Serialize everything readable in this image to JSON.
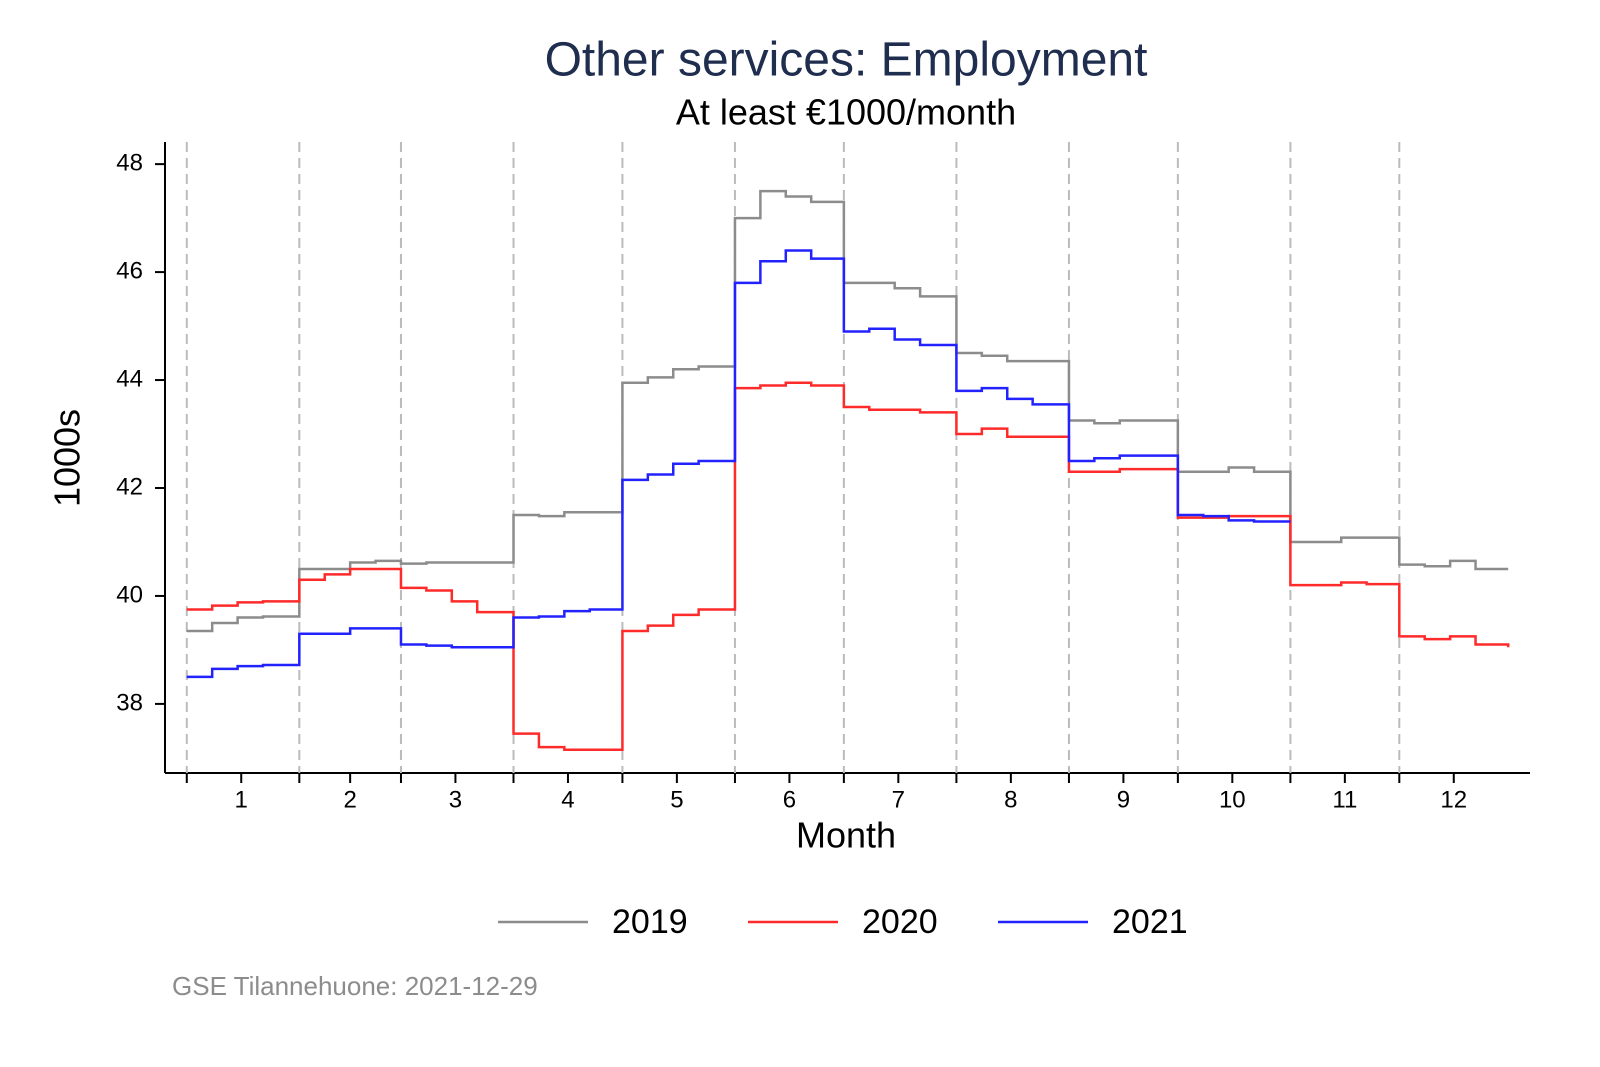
{
  "chart_data": {
    "type": "step",
    "title": "Other services: Employment",
    "subtitle": "At least €1000/month",
    "x_label": "Month",
    "y_label": "1000s",
    "source": "GSE Tilannehuone: 2021-12-29",
    "x": [
      1,
      8,
      15,
      22,
      32,
      39,
      46,
      53,
      60,
      67,
      74,
      81,
      91,
      98,
      105,
      112,
      121,
      128,
      135,
      142,
      152,
      159,
      166,
      173,
      182,
      189,
      196,
      203,
      213,
      220,
      227,
      234,
      244,
      251,
      258,
      265,
      274,
      281,
      288,
      295,
      305,
      312,
      319,
      326,
      335,
      342,
      349,
      356,
      365
    ],
    "series": [
      {
        "name": "2019",
        "color": "#8c8c8c",
        "values": [
          39.35,
          39.5,
          39.6,
          39.62,
          40.5,
          40.5,
          40.62,
          40.65,
          40.6,
          40.62,
          40.62,
          40.62,
          41.5,
          41.48,
          41.55,
          41.55,
          43.95,
          44.05,
          44.2,
          44.25,
          47.0,
          47.5,
          47.4,
          47.3,
          45.8,
          45.8,
          45.7,
          45.55,
          44.5,
          44.45,
          44.35,
          44.35,
          43.25,
          43.2,
          43.25,
          43.25,
          42.3,
          42.3,
          42.38,
          42.3,
          41.0,
          41.0,
          41.08,
          41.08,
          40.58,
          40.55,
          40.65,
          40.5,
          40.5
        ]
      },
      {
        "name": "2020",
        "color": "#ff2a2a",
        "values": [
          39.75,
          39.82,
          39.88,
          39.9,
          40.3,
          40.4,
          40.5,
          40.5,
          40.15,
          40.1,
          39.9,
          39.7,
          37.45,
          37.2,
          37.15,
          37.15,
          39.35,
          39.45,
          39.65,
          39.75,
          43.85,
          43.9,
          43.95,
          43.9,
          43.5,
          43.45,
          43.45,
          43.4,
          43.0,
          43.1,
          42.95,
          42.95,
          42.3,
          42.3,
          42.35,
          42.35,
          41.45,
          41.45,
          41.48,
          41.48,
          40.2,
          40.2,
          40.25,
          40.22,
          39.25,
          39.2,
          39.25,
          39.1,
          39.05
        ]
      },
      {
        "name": "2021",
        "color": "#2222ff",
        "values": [
          38.5,
          38.65,
          38.7,
          38.72,
          39.3,
          39.3,
          39.4,
          39.4,
          39.1,
          39.08,
          39.05,
          39.05,
          39.6,
          39.62,
          39.72,
          39.75,
          42.15,
          42.25,
          42.45,
          42.5,
          45.8,
          46.2,
          46.4,
          46.25,
          44.9,
          44.95,
          44.75,
          44.65,
          43.8,
          43.85,
          43.65,
          43.55,
          42.5,
          42.55,
          42.6,
          42.6,
          41.5,
          41.48,
          41.4,
          41.38,
          null,
          null,
          null,
          null,
          null,
          null,
          null,
          null,
          null
        ]
      }
    ],
    "xlim": [
      -5,
      371
    ],
    "ylim": [
      36.72,
      48.41
    ],
    "yticks": [
      38,
      40,
      42,
      44,
      46,
      48
    ],
    "xticks": [
      {
        "value": 16,
        "label": "1"
      },
      {
        "value": 46,
        "label": "2"
      },
      {
        "value": 75,
        "label": "3"
      },
      {
        "value": 106,
        "label": "4"
      },
      {
        "value": 136,
        "label": "5"
      },
      {
        "value": 167,
        "label": "6"
      },
      {
        "value": 197,
        "label": "7"
      },
      {
        "value": 228,
        "label": "8"
      },
      {
        "value": 259,
        "label": "9"
      },
      {
        "value": 289,
        "label": "10"
      },
      {
        "value": 320,
        "label": "11"
      },
      {
        "value": 350,
        "label": "12"
      }
    ],
    "x_gridlines": [
      1,
      32,
      60,
      91,
      121,
      152,
      182,
      213,
      244,
      274,
      305,
      335
    ],
    "grid_style": "dashed",
    "legend": "bottom"
  }
}
